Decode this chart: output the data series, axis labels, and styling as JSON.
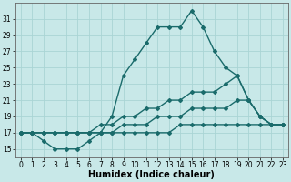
{
  "xlabel": "Humidex (Indice chaleur)",
  "x_values": [
    0,
    1,
    2,
    3,
    4,
    5,
    6,
    7,
    8,
    9,
    10,
    11,
    12,
    13,
    14,
    15,
    16,
    17,
    18,
    19,
    20,
    21,
    22,
    23
  ],
  "line_main": [
    17,
    17,
    16,
    15,
    15,
    15,
    16,
    17,
    19,
    24,
    26,
    28,
    30,
    30,
    30,
    32,
    30,
    27,
    25,
    24,
    21,
    19,
    18,
    18
  ],
  "line_a": [
    17,
    17,
    17,
    17,
    17,
    17,
    17,
    18,
    18,
    19,
    19,
    20,
    20,
    21,
    21,
    22,
    22,
    22,
    23,
    24,
    21,
    19,
    18,
    18
  ],
  "line_b": [
    17,
    17,
    17,
    17,
    17,
    17,
    17,
    17,
    17,
    18,
    18,
    18,
    19,
    19,
    19,
    20,
    20,
    20,
    20,
    21,
    21,
    19,
    18,
    18
  ],
  "line_c": [
    17,
    17,
    17,
    17,
    17,
    17,
    17,
    17,
    17,
    17,
    17,
    17,
    17,
    17,
    18,
    18,
    18,
    18,
    18,
    18,
    18,
    18,
    18,
    18
  ],
  "ylim_min": 14,
  "ylim_max": 33,
  "xlim_min": -0.5,
  "xlim_max": 23.5,
  "yticks": [
    15,
    17,
    19,
    21,
    23,
    25,
    27,
    29,
    31
  ],
  "xticks": [
    0,
    1,
    2,
    3,
    4,
    5,
    6,
    7,
    8,
    9,
    10,
    11,
    12,
    13,
    14,
    15,
    16,
    17,
    18,
    19,
    20,
    21,
    22,
    23
  ],
  "bg_color": "#c8e8e8",
  "grid_color": "#aad4d4",
  "line_color": "#1a6b6b",
  "line_width": 1.0,
  "marker": "D",
  "marker_size": 2.0,
  "tick_fontsize": 5.5,
  "xlabel_fontsize": 7
}
